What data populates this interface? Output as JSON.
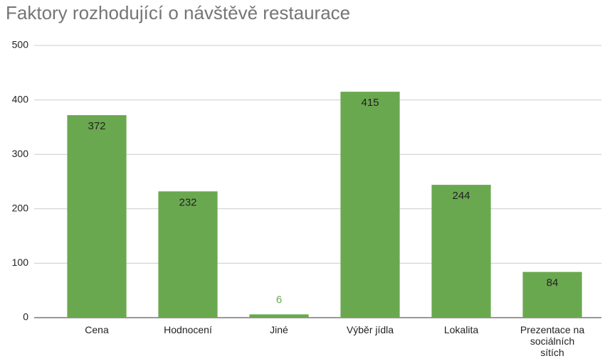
{
  "chart_data": {
    "type": "bar",
    "title": "Faktory rozhodující o návštěvě restaurace",
    "categories": [
      "Cena",
      "Hodnocení",
      "Jiné",
      "Výběr jídla",
      "Lokalita",
      "Prezentace na sociálních sítích"
    ],
    "values": [
      372,
      232,
      6,
      415,
      244,
      84
    ],
    "color": "#6aa84f",
    "ylim": [
      0,
      500
    ],
    "yticks": [
      0,
      100,
      200,
      300,
      400,
      500
    ],
    "grid": true
  }
}
